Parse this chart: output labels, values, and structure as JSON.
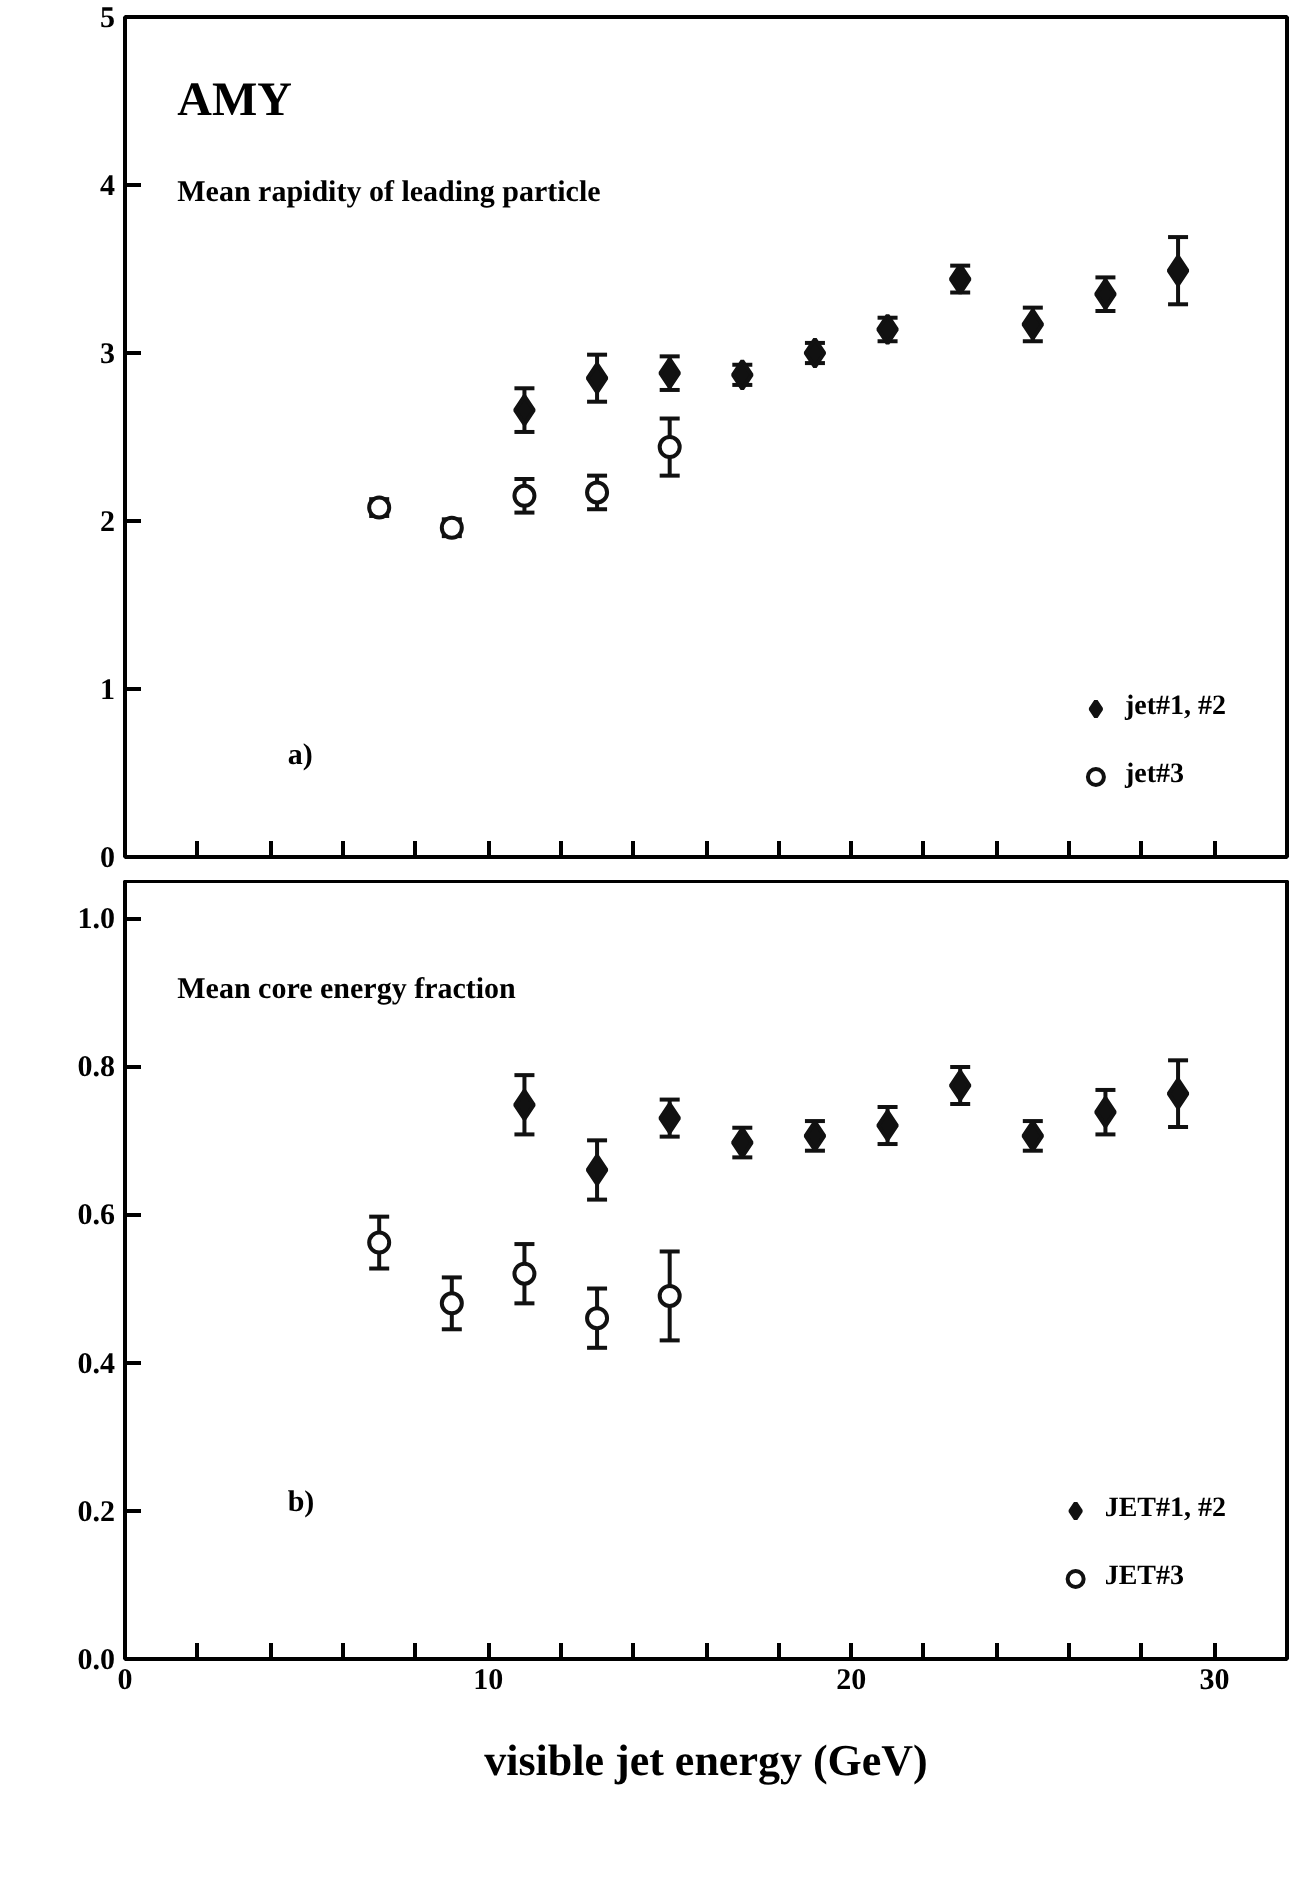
{
  "chart_data": [
    {
      "type": "scatter",
      "annotations": [
        "AMY",
        "Mean rapidity of leading particle",
        "a)"
      ],
      "xlim": [
        0,
        32
      ],
      "xticks": [
        {
          "value": 0,
          "label": null
        },
        {
          "value": 2,
          "label": null
        },
        {
          "value": 4,
          "label": null
        },
        {
          "value": 6,
          "label": null
        },
        {
          "value": 8,
          "label": null
        },
        {
          "value": 10,
          "label": null
        },
        {
          "value": 12,
          "label": null
        },
        {
          "value": 14,
          "label": null
        },
        {
          "value": 16,
          "label": null
        },
        {
          "value": 18,
          "label": null
        },
        {
          "value": 20,
          "label": null
        },
        {
          "value": 22,
          "label": null
        },
        {
          "value": 24,
          "label": null
        },
        {
          "value": 26,
          "label": null
        },
        {
          "value": 28,
          "label": null
        },
        {
          "value": 30,
          "label": null
        }
      ],
      "ylim": [
        0,
        5
      ],
      "yticks": [
        0,
        1,
        2,
        3,
        4,
        5
      ],
      "tick_labels": "y",
      "grid": false,
      "legend": "bottom right",
      "series": [
        {
          "name": "jet#1, #2",
          "color": "#111111",
          "marker": "diamond",
          "x": [
            11,
            13,
            15,
            17,
            19,
            21,
            23,
            25,
            27,
            29
          ],
          "values": [
            2.66,
            2.85,
            2.88,
            2.87,
            3.0,
            3.14,
            3.44,
            3.17,
            3.35,
            3.49
          ],
          "errors": [
            0.13,
            0.14,
            0.1,
            0.06,
            0.06,
            0.07,
            0.08,
            0.1,
            0.1,
            0.2
          ]
        },
        {
          "name": "jet#3",
          "color": "#111111",
          "marker": "circle",
          "x": [
            7,
            9,
            11,
            13,
            15
          ],
          "values": [
            2.08,
            1.96,
            2.15,
            2.17,
            2.44
          ],
          "errors": [
            0.05,
            0.05,
            0.1,
            0.1,
            0.17
          ]
        }
      ]
    },
    {
      "type": "scatter",
      "annotations": [
        "Mean core energy fraction",
        "b)"
      ],
      "xlabel": "visible jet energy (GeV)",
      "xlim": [
        0,
        32
      ],
      "xticks": [
        0,
        {
          "value": 2,
          "label": null
        },
        {
          "value": 4,
          "label": null
        },
        {
          "value": 6,
          "label": null
        },
        {
          "value": 8,
          "label": null
        },
        10,
        {
          "value": 12,
          "label": null
        },
        {
          "value": 14,
          "label": null
        },
        {
          "value": 16,
          "label": null
        },
        {
          "value": 18,
          "label": null
        },
        20,
        {
          "value": 22,
          "label": null
        },
        {
          "value": 24,
          "label": null
        },
        {
          "value": 26,
          "label": null
        },
        {
          "value": 28,
          "label": null
        },
        30
      ],
      "ylim": [
        0,
        1.05
      ],
      "yticks": [
        {
          "value": 0,
          "label": "0.0"
        },
        0.2,
        0.4,
        0.6,
        0.8,
        {
          "value": 1,
          "label": "1.0"
        }
      ],
      "grid": false,
      "legend": "bottom right",
      "series": [
        {
          "name": "JET#1, #2",
          "color": "#111111",
          "marker": "diamond",
          "x": [
            11,
            13,
            15,
            17,
            19,
            21,
            23,
            25,
            27,
            29
          ],
          "values": [
            0.748,
            0.66,
            0.73,
            0.697,
            0.706,
            0.72,
            0.774,
            0.706,
            0.738,
            0.763
          ],
          "errors": [
            0.04,
            0.04,
            0.025,
            0.02,
            0.02,
            0.025,
            0.025,
            0.02,
            0.03,
            0.045
          ]
        },
        {
          "name": "JET#3",
          "color": "#111111",
          "marker": "circle",
          "x": [
            7,
            9,
            11,
            13,
            15
          ],
          "values": [
            0.562,
            0.48,
            0.52,
            0.46,
            0.49
          ],
          "errors": [
            0.035,
            0.035,
            0.04,
            0.04,
            0.06
          ]
        }
      ]
    }
  ]
}
